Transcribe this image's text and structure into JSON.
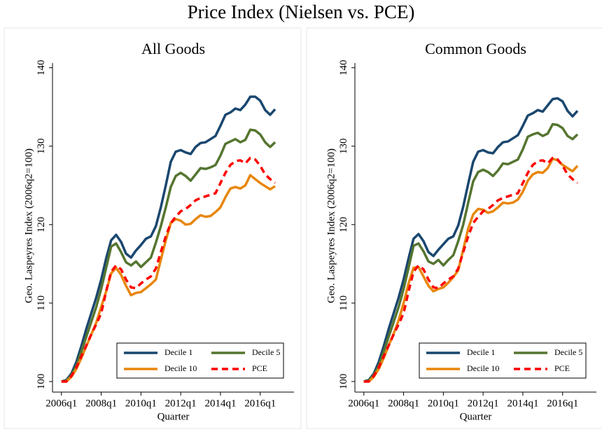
{
  "title": "Price Index (Nielsen vs. PCE)",
  "chart_data": [
    {
      "type": "line",
      "title": "All Goods",
      "x_label": "Quarter",
      "y_label": "Geo. Laspeyres Index (2006q2=100)",
      "x": [
        2006,
        2006.25,
        2006.5,
        2006.75,
        2007,
        2007.25,
        2007.5,
        2007.75,
        2008,
        2008.25,
        2008.5,
        2008.75,
        2009,
        2009.25,
        2009.5,
        2009.75,
        2010,
        2010.25,
        2010.5,
        2010.75,
        2011,
        2011.25,
        2011.5,
        2011.75,
        2012,
        2012.25,
        2012.5,
        2012.75,
        2013,
        2013.25,
        2013.5,
        2013.75,
        2014,
        2014.25,
        2014.5,
        2014.75,
        2015,
        2015.25,
        2015.5,
        2015.75,
        2016,
        2016.25,
        2016.5,
        2016.75
      ],
      "series": [
        {
          "name": "Decile 1",
          "color": "#1a476f",
          "dash": false,
          "values": [
            100,
            100.2,
            101,
            102.5,
            104.5,
            106.7,
            108.7,
            110.7,
            113,
            115.7,
            118,
            118.7,
            117.8,
            116.3,
            115.8,
            116.7,
            117.4,
            118.2,
            118.5,
            119.8,
            122.2,
            125,
            128,
            129.3,
            129.5,
            129.2,
            129,
            129.9,
            130.4,
            130.5,
            130.9,
            131.3,
            132.6,
            134,
            134.3,
            134.8,
            134.6,
            135.3,
            136.3,
            136.3,
            135.8,
            134.6,
            134,
            134.7
          ]
        },
        {
          "name": "Decile 5",
          "color": "#55752f",
          "dash": false,
          "values": [
            100,
            100.1,
            100.8,
            102,
            103.8,
            105.7,
            107.6,
            109.5,
            111.8,
            114.5,
            117.2,
            117.6,
            116.5,
            115.2,
            114.8,
            115.3,
            114.6,
            115.2,
            115.8,
            117.7,
            119.8,
            122.2,
            124.8,
            126.2,
            126.6,
            126.2,
            125.6,
            126.4,
            127.2,
            127.1,
            127.3,
            127.6,
            128.8,
            130.3,
            130.6,
            130.9,
            130.5,
            130.8,
            132.1,
            132,
            131.5,
            130.5,
            129.9,
            130.5
          ]
        },
        {
          "name": "Decile 10",
          "color": "#e8860c",
          "dash": false,
          "values": [
            100,
            100,
            100.6,
            101.6,
            103,
            104.5,
            106,
            107.5,
            109.5,
            111.5,
            113.8,
            114.5,
            113.6,
            112.2,
            111,
            111.3,
            111.4,
            111.9,
            112.4,
            113,
            115.5,
            118,
            120.2,
            120.7,
            120.5,
            120,
            120.1,
            120.7,
            121.2,
            121,
            121.1,
            121.6,
            122.2,
            123.5,
            124.6,
            124.8,
            124.6,
            125,
            126.3,
            125.8,
            125.3,
            124.9,
            124.5,
            124.9
          ]
        },
        {
          "name": "PCE",
          "color": "#ff0000",
          "dash": true,
          "values": [
            100,
            100,
            100.7,
            101.8,
            103.2,
            104.6,
            106,
            107.3,
            108.7,
            111.5,
            114,
            114.8,
            114.3,
            113,
            112,
            111.9,
            112.5,
            113,
            113.4,
            114.4,
            116.5,
            118.5,
            120.2,
            121,
            121.7,
            122,
            122.5,
            123.1,
            123.4,
            123.6,
            123.8,
            124,
            125.3,
            126.6,
            127.6,
            128.1,
            128.2,
            127.8,
            128.5,
            128.3,
            127.5,
            126.4,
            125.8,
            125.3
          ]
        }
      ],
      "xlim": [
        2005.55,
        2017.7
      ],
      "ylim": [
        99.1,
        140.6
      ],
      "xticks": [
        {
          "value": 2006,
          "label": "2006q1"
        },
        {
          "value": 2008,
          "label": "2008q1"
        },
        {
          "value": 2010,
          "label": "2010q1"
        },
        {
          "value": 2012,
          "label": "2012q1"
        },
        {
          "value": 2014,
          "label": "2014q1"
        },
        {
          "value": 2016,
          "label": "2016q1"
        }
      ],
      "yticks": [
        100,
        110,
        120,
        130,
        140
      ],
      "grid": false,
      "legend": "lower right"
    },
    {
      "type": "line",
      "title": "Common Goods",
      "x_label": "Quarter",
      "y_label": "Geo. Laspeyres Index (2006q2=100)",
      "x": [
        2006,
        2006.25,
        2006.5,
        2006.75,
        2007,
        2007.25,
        2007.5,
        2007.75,
        2008,
        2008.25,
        2008.5,
        2008.75,
        2009,
        2009.25,
        2009.5,
        2009.75,
        2010,
        2010.25,
        2010.5,
        2010.75,
        2011,
        2011.25,
        2011.5,
        2011.75,
        2012,
        2012.25,
        2012.5,
        2012.75,
        2013,
        2013.25,
        2013.5,
        2013.75,
        2014,
        2014.25,
        2014.5,
        2014.75,
        2015,
        2015.25,
        2015.5,
        2015.75,
        2016,
        2016.25,
        2016.5,
        2016.75
      ],
      "series": [
        {
          "name": "Decile 1",
          "color": "#1a476f",
          "dash": false,
          "values": [
            100,
            100.2,
            101,
            102.5,
            104.5,
            106.7,
            108.7,
            110.7,
            113,
            115.7,
            118.2,
            118.8,
            117.9,
            116.5,
            116,
            116.8,
            117.5,
            118.2,
            118.5,
            119.9,
            122.3,
            125.2,
            128,
            129.3,
            129.5,
            129.2,
            129.1,
            129.9,
            130.5,
            130.6,
            131,
            131.4,
            132.6,
            133.9,
            134.2,
            134.6,
            134.4,
            135.2,
            136,
            136.1,
            135.7,
            134.5,
            133.8,
            134.5
          ]
        },
        {
          "name": "Decile 5",
          "color": "#55752f",
          "dash": false,
          "values": [
            100,
            100.1,
            100.8,
            102,
            103.8,
            105.7,
            107.6,
            109.5,
            111.8,
            114.5,
            117.3,
            117.6,
            116.6,
            115.3,
            115,
            115.5,
            114.8,
            115.5,
            116.1,
            117.9,
            120,
            122.8,
            125.5,
            126.7,
            127,
            126.7,
            126.2,
            126.9,
            127.8,
            127.7,
            128,
            128.3,
            129.6,
            131.2,
            131.5,
            131.7,
            131.3,
            131.6,
            132.8,
            132.7,
            132.3,
            131.3,
            130.9,
            131.5
          ]
        },
        {
          "name": "Decile 10",
          "color": "#e8860c",
          "dash": false,
          "values": [
            100,
            100,
            100.6,
            101.6,
            103,
            104.6,
            106.1,
            107.8,
            110,
            112.5,
            114.5,
            114.6,
            113.4,
            112.2,
            111.5,
            111.8,
            112,
            112.6,
            113.3,
            114.2,
            116.8,
            119.5,
            121.3,
            122,
            121.9,
            121.5,
            121.7,
            122.2,
            122.8,
            122.7,
            122.8,
            123.2,
            124.2,
            125.6,
            126.4,
            126.7,
            126.6,
            127.2,
            128.4,
            128.2,
            127.6,
            127.2,
            126.8,
            127.5
          ]
        },
        {
          "name": "PCE",
          "color": "#ff0000",
          "dash": true,
          "values": [
            100,
            100,
            100.7,
            101.8,
            103.2,
            104.6,
            106,
            107.3,
            108.7,
            111.5,
            114,
            114.8,
            114.3,
            113,
            112,
            111.9,
            112.5,
            113,
            113.4,
            114.4,
            116.5,
            118.5,
            120.2,
            121,
            121.7,
            122,
            122.5,
            123.1,
            123.4,
            123.6,
            123.8,
            124,
            125.3,
            126.6,
            127.6,
            128.1,
            128.2,
            127.8,
            128.5,
            128.3,
            127.5,
            126.4,
            125.8,
            125.3
          ]
        }
      ],
      "xlim": [
        2005.55,
        2017.7
      ],
      "ylim": [
        99.1,
        140.6
      ],
      "xticks": [
        {
          "value": 2006,
          "label": "2006q1"
        },
        {
          "value": 2008,
          "label": "2008q1"
        },
        {
          "value": 2010,
          "label": "2010q1"
        },
        {
          "value": 2012,
          "label": "2012q1"
        },
        {
          "value": 2014,
          "label": "2014q1"
        },
        {
          "value": 2016,
          "label": "2016q1"
        }
      ],
      "yticks": [
        100,
        110,
        120,
        130,
        140
      ],
      "grid": false,
      "legend": "lower right"
    }
  ]
}
